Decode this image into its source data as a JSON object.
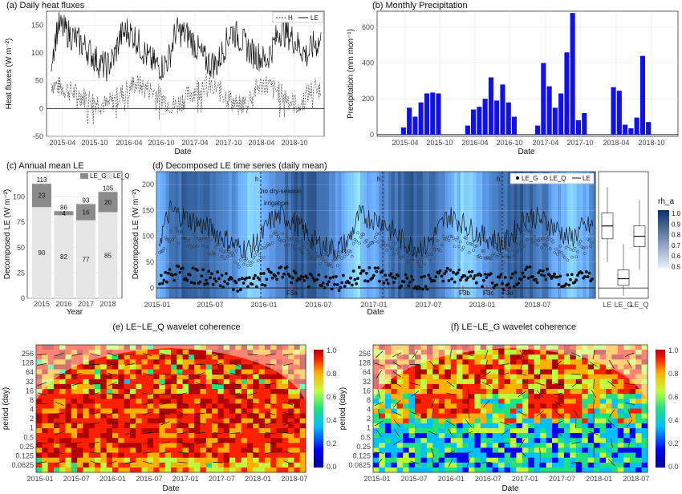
{
  "chart_data": [
    {
      "type": "line",
      "title": "(a) Daily heat fluxes",
      "xlabel": "Date",
      "ylabel": "Heat fluxes (W m⁻²)",
      "ylim": [
        -50,
        175
      ],
      "yticks": [
        "150",
        "100",
        "50",
        "0",
        "-50"
      ],
      "xticks": [
        "2015-04",
        "2015-10",
        "2016-04",
        "2016-10",
        "2017-04",
        "2017-10",
        "2018-04",
        "2018-10"
      ],
      "legend": "top-right",
      "series": [
        {
          "name": "H",
          "style": "dashed",
          "values_monthly": [
            45,
            40,
            35,
            30,
            25,
            20,
            15,
            10,
            5,
            15,
            25,
            35,
            45,
            40,
            35,
            30,
            20,
            10,
            5,
            15,
            25,
            35,
            45,
            40,
            35,
            25,
            15,
            5,
            10,
            25,
            40,
            45,
            35,
            30,
            20,
            10,
            5,
            25,
            40,
            35
          ]
        },
        {
          "name": "LE",
          "style": "solid",
          "values_monthly": [
            90,
            150,
            140,
            130,
            120,
            110,
            95,
            80,
            75,
            90,
            130,
            140,
            130,
            110,
            90,
            80,
            75,
            90,
            140,
            135,
            130,
            110,
            90,
            80,
            80,
            110,
            140,
            130,
            115,
            100,
            95,
            85,
            110,
            140,
            135,
            125,
            110,
            95,
            115,
            120
          ]
        }
      ]
    },
    {
      "type": "bar",
      "title": "(b) Monthly Precipitation",
      "xlabel": "Date",
      "ylabel": "Precipitation (mm mon⁻¹)",
      "ylim": [
        -10,
        690
      ],
      "yticks": [
        "600",
        "400",
        "200",
        "0"
      ],
      "xticks": [
        "2015-04",
        "2015-10",
        "2016-04",
        "2016-10",
        "2017-04",
        "2017-10",
        "2018-04",
        "2018-10"
      ],
      "color": "#1010ee",
      "values": [
        0,
        0,
        0,
        40,
        150,
        100,
        180,
        230,
        235,
        230,
        0,
        0,
        0,
        0,
        50,
        140,
        155,
        200,
        320,
        190,
        280,
        180,
        100,
        0,
        0,
        0,
        50,
        400,
        270,
        150,
        230,
        460,
        680,
        80,
        120,
        0,
        0,
        0,
        0,
        265,
        245,
        55,
        35,
        95,
        440,
        70
      ]
    },
    {
      "type": "bar",
      "title": "(c) Annual mean LE",
      "xlabel": "Year",
      "ylabel": "Decomposed LE (W m⁻²)",
      "ylim": [
        0,
        125
      ],
      "yticks": [
        "100",
        "75",
        "50",
        "25",
        "0"
      ],
      "categories": [
        "2015",
        "2016",
        "2017",
        "2018"
      ],
      "legend": "top-right",
      "series": [
        {
          "name": "LE_G",
          "color": "#8c8c8c",
          "values": [
            23,
            4,
            16,
            20
          ]
        },
        {
          "name": "LE_Q",
          "color": "#e6e6e6",
          "values": [
            90,
            82,
            77,
            85
          ]
        }
      ],
      "totals": [
        113,
        86,
        93,
        105
      ]
    },
    {
      "type": "scatter",
      "title": "(d) Decomposed LE time series (daily mean)",
      "xlabel": "Date",
      "ylabel": "Decomposed LE (W m⁻²)",
      "ylim": [
        -20,
        225
      ],
      "yticks": [
        "200",
        "150",
        "100",
        "50",
        "0"
      ],
      "xticks": [
        "2015-01",
        "2015-07",
        "2016-01",
        "2016-07",
        "2017-01",
        "2017-07",
        "2018-01",
        "2018-07"
      ],
      "legend": "top-right",
      "series": [
        {
          "name": "LE_G",
          "marker": "filled"
        },
        {
          "name": "LE_Q",
          "marker": "open"
        },
        {
          "name": "LE",
          "marker": "line"
        }
      ],
      "annotations": [
        "h",
        "h",
        "h",
        "no dry-season irrigation",
        "F3a",
        "F3b",
        "F3c",
        "F3d"
      ],
      "colorbar": {
        "title": "rh_a",
        "ticks": [
          "1.0",
          "0.9",
          "0.8",
          "0.7",
          "0.6",
          "0.5"
        ]
      },
      "boxplot": {
        "categories": [
          "LE",
          "LE_G",
          "LE_Q"
        ],
        "medians": [
          120,
          18,
          100
        ]
      }
    },
    {
      "type": "heatmap",
      "title": "(e) LE~LE_Q wavelet coherence",
      "xlabel": "Date",
      "ylabel": "period (day)",
      "yticks": [
        "256",
        "128",
        "64",
        "32",
        "16",
        "8",
        "4",
        "2",
        "1",
        "0.5",
        "0.25",
        "0.125",
        "0.0625"
      ],
      "xticks": [
        "2015-01",
        "2015-07",
        "2016-01",
        "2016-07",
        "2017-01",
        "2017-07",
        "2018-01",
        "2018-07"
      ],
      "colorbar": [
        "1.0",
        "0.8",
        "0.6",
        "0.4",
        "0.2",
        "0.0"
      ]
    },
    {
      "type": "heatmap",
      "title": "(f) LE~LE_G wavelet coherence",
      "xlabel": "Date",
      "ylabel": "period (day)",
      "yticks": [
        "256",
        "128",
        "64",
        "32",
        "16",
        "8",
        "4",
        "2",
        "1",
        "0.5",
        "0.25",
        "0.125",
        "0.0625"
      ],
      "xticks": [
        "2015-01",
        "2015-07",
        "2016-01",
        "2016-07",
        "2017-01",
        "2017-07",
        "2018-01",
        "2018-07"
      ],
      "colorbar": [
        "1.0",
        "0.8",
        "0.6",
        "0.4",
        "0.2",
        "0.0"
      ]
    }
  ]
}
